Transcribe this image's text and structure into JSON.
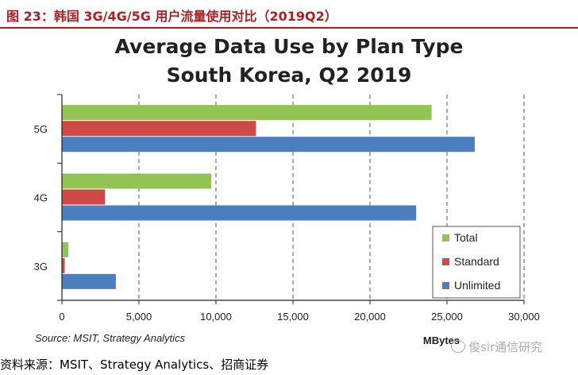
{
  "figure": {
    "title": "图 23：韩国 3G/4G/5G 用户流量使用对比（2019Q2）",
    "footer_source": "资料来源：MSIT、Strategy Analytics、招商证券",
    "watermark": "俊sir通信研究"
  },
  "chart_data": {
    "type": "bar",
    "orientation": "horizontal",
    "title_line1": "Average Data Use by Plan Type",
    "title_line2": "South Korea, Q2 2019",
    "categories": [
      "5G",
      "4G",
      "3G"
    ],
    "series": [
      {
        "name": "Total",
        "color": "#92c353",
        "values": [
          24000,
          9700,
          420
        ]
      },
      {
        "name": "Standard",
        "color": "#cf4a47",
        "values": [
          12600,
          2800,
          180
        ]
      },
      {
        "name": "Unlimited",
        "color": "#4a7ebf",
        "values": [
          26800,
          23000,
          3500
        ]
      }
    ],
    "xlabel": "MBytes",
    "xlim": [
      0,
      30000
    ],
    "xticks": [
      0,
      5000,
      10000,
      15000,
      20000,
      25000,
      30000
    ],
    "xtick_labels": [
      "0",
      "5,000",
      "10,000",
      "15,000",
      "20,000",
      "25,000",
      "30,000"
    ],
    "grid": true,
    "legend_position": "bottom-right",
    "source_note": "Source: MSIT, Strategy Analytics"
  }
}
